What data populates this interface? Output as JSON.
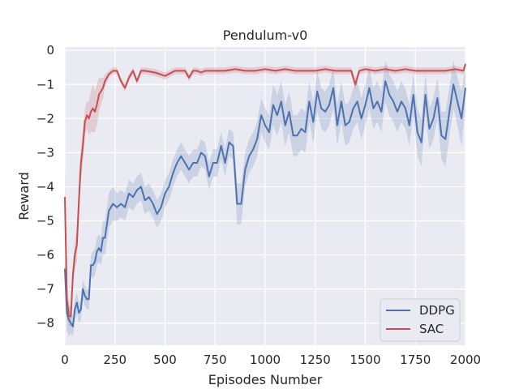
{
  "chart_data": {
    "type": "line",
    "title": "Pendulum-v0",
    "xlabel": "Episodes Number",
    "ylabel": "Reward",
    "xlim": [
      0,
      2000
    ],
    "ylim": [
      -8.65,
      0.1
    ],
    "xticks": [
      0,
      250,
      500,
      750,
      1000,
      1250,
      1500,
      1750,
      2000
    ],
    "yticks": [
      0,
      -1,
      -2,
      -3,
      -4,
      -5,
      -6,
      -7,
      -8
    ],
    "grid": true,
    "legend_position": "lower-right",
    "series": [
      {
        "name": "DDPG",
        "color": "#4c72b0",
        "x": [
          0,
          10,
          20,
          30,
          40,
          50,
          60,
          70,
          80,
          90,
          100,
          110,
          120,
          130,
          140,
          150,
          160,
          170,
          180,
          190,
          200,
          220,
          240,
          260,
          280,
          300,
          320,
          340,
          360,
          380,
          400,
          420,
          440,
          460,
          480,
          500,
          520,
          540,
          560,
          580,
          600,
          620,
          640,
          660,
          680,
          700,
          720,
          740,
          760,
          780,
          800,
          820,
          840,
          860,
          880,
          900,
          920,
          940,
          960,
          980,
          1000,
          1020,
          1040,
          1060,
          1080,
          1100,
          1120,
          1140,
          1160,
          1180,
          1200,
          1220,
          1240,
          1260,
          1280,
          1300,
          1320,
          1340,
          1360,
          1380,
          1400,
          1420,
          1440,
          1460,
          1480,
          1500,
          1520,
          1540,
          1560,
          1580,
          1600,
          1620,
          1640,
          1660,
          1680,
          1700,
          1720,
          1740,
          1760,
          1780,
          1800,
          1820,
          1840,
          1860,
          1880,
          1900,
          1920,
          1940,
          1960,
          1980,
          2000
        ],
        "y": [
          -6.4,
          -7.7,
          -7.9,
          -8.0,
          -8.1,
          -7.6,
          -7.4,
          -7.7,
          -7.6,
          -7.0,
          -7.2,
          -7.3,
          -7.3,
          -6.3,
          -6.3,
          -6.2,
          -5.9,
          -5.8,
          -5.9,
          -5.5,
          -5.5,
          -4.7,
          -4.5,
          -4.6,
          -4.5,
          -4.6,
          -4.2,
          -4.3,
          -4.1,
          -4.0,
          -4.4,
          -4.3,
          -4.5,
          -4.8,
          -4.6,
          -4.2,
          -4.0,
          -3.6,
          -3.3,
          -3.1,
          -3.3,
          -3.5,
          -3.3,
          -3.3,
          -3.0,
          -3.1,
          -3.7,
          -3.3,
          -3.3,
          -2.8,
          -3.3,
          -2.7,
          -2.8,
          -4.5,
          -4.5,
          -3.5,
          -3.1,
          -2.9,
          -2.6,
          -1.9,
          -2.2,
          -2.4,
          -1.6,
          -1.9,
          -1.5,
          -2.2,
          -1.8,
          -2.5,
          -2.5,
          -2.3,
          -2.4,
          -1.5,
          -2.1,
          -1.2,
          -1.7,
          -1.8,
          -1.6,
          -1.1,
          -2.2,
          -1.5,
          -2.2,
          -2.1,
          -1.7,
          -1.5,
          -2.0,
          -1.6,
          -1.1,
          -1.7,
          -1.5,
          -1.8,
          -0.9,
          -1.3,
          -1.5,
          -1.8,
          -1.5,
          -1.7,
          -2.2,
          -1.3,
          -2.4,
          -2.7,
          -1.3,
          -2.3,
          -2.0,
          -1.4,
          -2.5,
          -2.6,
          -1.8,
          -1.0,
          -1.5,
          -2.0,
          -1.1
        ],
        "band": [
          0.4,
          0.5,
          0.5,
          0.3,
          0.3,
          0.3,
          0.3,
          0.3,
          0.3,
          0.3,
          0.3,
          0.3,
          0.3,
          0.3,
          0.4,
          0.4,
          0.4,
          0.4,
          0.4,
          0.5,
          0.5,
          0.5,
          0.5,
          0.4,
          0.4,
          0.4,
          0.4,
          0.4,
          0.4,
          0.4,
          0.4,
          0.4,
          0.4,
          0.4,
          0.4,
          0.4,
          0.4,
          0.4,
          0.4,
          0.4,
          0.4,
          0.4,
          0.4,
          0.4,
          0.4,
          0.4,
          0.4,
          0.4,
          0.4,
          0.4,
          0.4,
          0.4,
          0.4,
          0.6,
          0.6,
          0.5,
          0.5,
          0.5,
          0.5,
          0.5,
          0.5,
          0.5,
          0.6,
          0.6,
          0.6,
          0.6,
          0.6,
          0.6,
          0.6,
          0.6,
          0.6,
          0.6,
          0.6,
          0.6,
          0.6,
          0.6,
          0.6,
          0.6,
          0.6,
          0.6,
          0.6,
          0.6,
          0.6,
          0.6,
          0.6,
          0.6,
          0.6,
          0.6,
          0.6,
          0.6,
          0.6,
          0.6,
          0.6,
          0.6,
          0.6,
          0.6,
          0.6,
          0.6,
          0.7,
          0.7,
          0.6,
          0.6,
          0.6,
          0.6,
          0.7,
          0.8,
          0.7,
          0.7,
          0.7,
          0.8,
          0.6
        ]
      },
      {
        "name": "SAC",
        "color": "#c44e52",
        "x": [
          0,
          10,
          20,
          30,
          40,
          50,
          60,
          70,
          80,
          90,
          100,
          110,
          120,
          130,
          140,
          150,
          160,
          170,
          180,
          190,
          200,
          220,
          240,
          260,
          280,
          300,
          320,
          340,
          360,
          380,
          400,
          450,
          500,
          550,
          600,
          620,
          640,
          660,
          680,
          700,
          750,
          800,
          850,
          900,
          950,
          1000,
          1050,
          1100,
          1150,
          1200,
          1250,
          1300,
          1350,
          1400,
          1430,
          1450,
          1470,
          1500,
          1550,
          1600,
          1650,
          1700,
          1750,
          1800,
          1850,
          1900,
          1950,
          1990,
          2000
        ],
        "y": [
          -4.3,
          -7.3,
          -7.8,
          -7.8,
          -6.6,
          -6.0,
          -5.7,
          -4.4,
          -3.3,
          -2.8,
          -2.1,
          -1.9,
          -2.0,
          -1.8,
          -1.7,
          -1.8,
          -1.6,
          -1.3,
          -1.2,
          -1.1,
          -0.9,
          -0.7,
          -0.6,
          -0.6,
          -0.9,
          -1.1,
          -0.8,
          -0.6,
          -0.9,
          -0.6,
          -0.6,
          -0.65,
          -0.75,
          -0.6,
          -0.6,
          -0.8,
          -0.6,
          -0.6,
          -0.65,
          -0.6,
          -0.6,
          -0.6,
          -0.55,
          -0.6,
          -0.6,
          -0.55,
          -0.6,
          -0.55,
          -0.6,
          -0.6,
          -0.6,
          -0.55,
          -0.6,
          -0.6,
          -0.6,
          -1.0,
          -0.6,
          -0.55,
          -0.6,
          -0.55,
          -0.6,
          -0.55,
          -0.6,
          -0.6,
          -0.6,
          -0.6,
          -0.55,
          -0.6,
          -0.4
        ],
        "band": [
          0.9,
          0.5,
          0.3,
          0.3,
          0.4,
          0.4,
          0.5,
          0.5,
          0.5,
          0.5,
          0.4,
          0.4,
          0.5,
          0.6,
          0.7,
          0.6,
          0.6,
          0.5,
          0.4,
          0.3,
          0.2,
          0.1,
          0.1,
          0.1,
          0.1,
          0.1,
          0.1,
          0.1,
          0.1,
          0.1,
          0.1,
          0.1,
          0.1,
          0.1,
          0.1,
          0.1,
          0.1,
          0.1,
          0.1,
          0.1,
          0.1,
          0.1,
          0.1,
          0.1,
          0.1,
          0.1,
          0.1,
          0.1,
          0.1,
          0.1,
          0.1,
          0.1,
          0.1,
          0.1,
          0.1,
          0.15,
          0.1,
          0.1,
          0.1,
          0.1,
          0.1,
          0.1,
          0.1,
          0.1,
          0.1,
          0.1,
          0.1,
          0.1,
          0.1
        ]
      }
    ]
  }
}
